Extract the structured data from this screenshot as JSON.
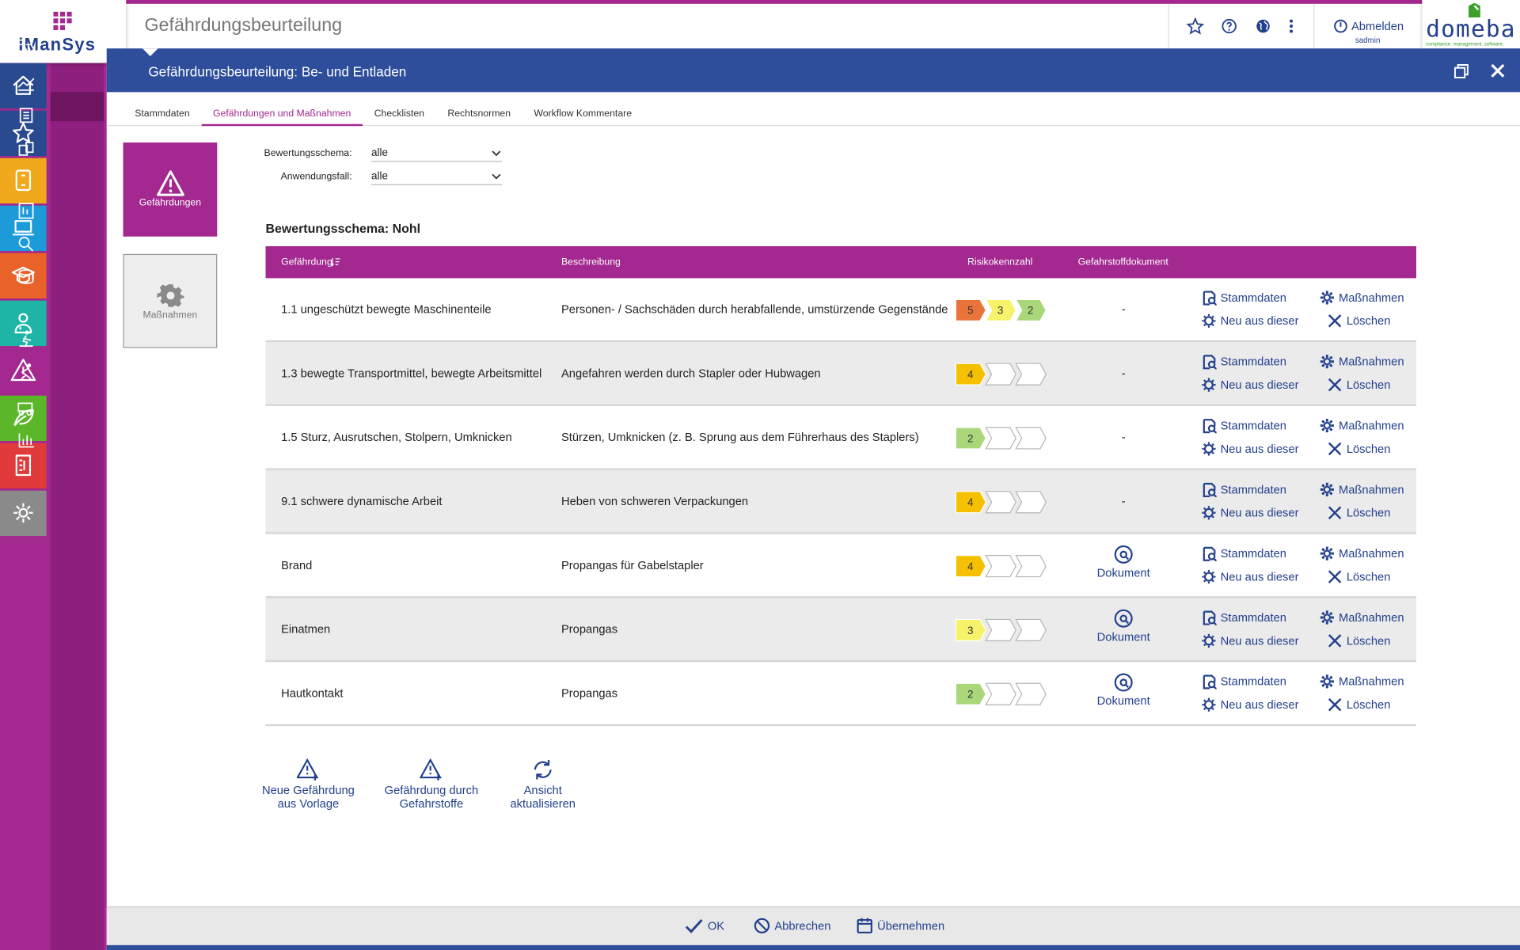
{
  "app": {
    "logo": "iManSys",
    "header_title": "Gefährdungsbeurteilung",
    "logout": "Abmelden",
    "user": "sadmin",
    "partner_logo": "domeba",
    "partner_tagline": "compliance. management. software."
  },
  "dialog": {
    "title": "Gefährdungsbeurteilung: Be- und Entladen",
    "tabs": [
      "Stammdaten",
      "Gefährdungen und Maßnahmen",
      "Checklisten",
      "Rechtsnormen",
      "Workflow Kommentare"
    ],
    "active_tab": 1,
    "tiles": [
      "Gefährdungen",
      "Maßnahmen"
    ],
    "filters": [
      {
        "label": "Bewertungsschema:",
        "value": "alle"
      },
      {
        "label": "Anwendungsfall:",
        "value": "alle"
      }
    ],
    "section_title": "Bewertungsschema: Nohl",
    "table": {
      "headers": [
        "Gefährdung",
        "Beschreibung",
        "Risikokennzahl",
        "Gefahrstoffdokument"
      ],
      "rows": [
        {
          "hazard": "1.1 ungeschützt bewegte Maschinenteile",
          "description": "Personen- / Sachschäden durch herabfallende, umstürzende Gegenstände",
          "risk": [
            5,
            3,
            2
          ],
          "document": "-"
        },
        {
          "hazard": "1.3 bewegte Transportmittel, bewegte Arbeitsmittel",
          "description": "Angefahren werden durch Stapler oder Hubwagen",
          "risk": [
            4
          ],
          "document": "-"
        },
        {
          "hazard": "1.5 Sturz, Ausrutschen, Stolpern, Umknicken",
          "description": "Stürzen, Umknicken (z. B. Sprung aus dem Führerhaus des Staplers)",
          "risk": [
            2
          ],
          "document": "-"
        },
        {
          "hazard": "9.1 schwere dynamische Arbeit",
          "description": "Heben von schweren Verpackungen",
          "risk": [
            4
          ],
          "document": "-"
        },
        {
          "hazard": "Brand",
          "description": "Propangas für Gabelstapler",
          "risk": [
            4
          ],
          "document": "Dokument"
        },
        {
          "hazard": "Einatmen",
          "description": "Propangas",
          "risk": [
            3
          ],
          "document": "Dokument"
        },
        {
          "hazard": "Hautkontakt",
          "description": "Propangas",
          "risk": [
            2
          ],
          "document": "Dokument"
        }
      ],
      "row_actions": [
        "Stammdaten",
        "Maßnahmen",
        "Neu aus dieser",
        "Löschen"
      ]
    },
    "risk_colors": {
      "2": "#a9d77a",
      "3": "#f6f26a",
      "4": "#f5c000",
      "5": "#e8743c"
    },
    "actions": [
      "Neue Gefährdung\naus Vorlage",
      "Gefährdung durch\nGefahrstoffe",
      "Ansicht\naktualisieren"
    ],
    "footer_buttons": [
      "OK",
      "Abbrechen",
      "Übernehmen"
    ]
  }
}
